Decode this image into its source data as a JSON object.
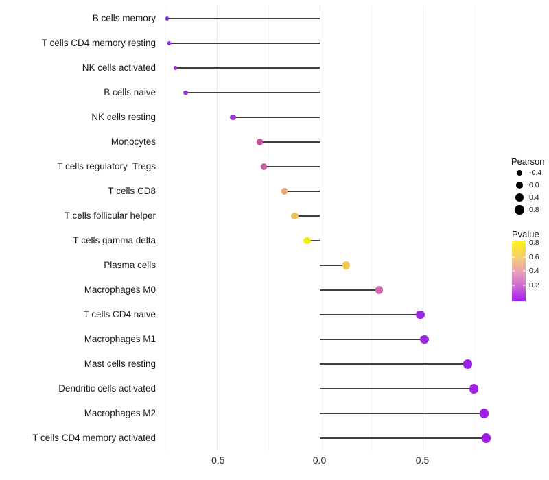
{
  "chart_data": {
    "type": "lollipop",
    "orientation": "horizontal",
    "title": "",
    "xlabel": "",
    "ylabel": "",
    "categories": [
      "B cells memory",
      "T cells CD4 memory resting",
      "NK cells activated",
      "B cells naive",
      "NK cells resting",
      "Monocytes",
      "T cells regulatory  Tregs",
      "T cells CD8",
      "T cells follicular helper",
      "T cells gamma delta",
      "Plasma cells",
      "Macrophages M0",
      "T cells CD4 naive",
      "Macrophages M1",
      "Mast cells resting",
      "Dendritic cells activated",
      "Macrophages M2",
      "T cells CD4 memory activated"
    ],
    "series": [
      {
        "name": "Pearson",
        "values": [
          -0.74,
          -0.73,
          -0.7,
          -0.65,
          -0.42,
          -0.29,
          -0.27,
          -0.17,
          -0.12,
          -0.06,
          0.13,
          0.29,
          0.49,
          0.51,
          0.72,
          0.75,
          0.8,
          0.81
        ]
      }
    ],
    "point_colors": [
      "#8d2be0",
      "#8d2be0",
      "#9230da",
      "#9530d6",
      "#a238d2",
      "#c4559e",
      "#ca60a2",
      "#eaa46e",
      "#efc35a",
      "#f2ee0a",
      "#f0c64f",
      "#d466b0",
      "#9929dc",
      "#9929dc",
      "#9c23df",
      "#9c23df",
      "#a01ee4",
      "#a01ee4"
    ],
    "x_axis": {
      "range": [
        -0.775,
        0.855
      ],
      "ticks": [
        {
          "label": "-0.5",
          "value": -0.5
        },
        {
          "label": "0.0",
          "value": 0.0
        },
        {
          "label": "0.5",
          "value": 0.5
        }
      ],
      "grid_major": [
        -0.5,
        0.0,
        0.5
      ],
      "grid_minor": [
        -0.75,
        -0.25,
        0.25,
        0.75
      ]
    },
    "baseline_value": 0.0,
    "legends": {
      "size": {
        "title": "Pearson",
        "entries": [
          {
            "label": "-0.4",
            "value": -0.4
          },
          {
            "label": "0.0",
            "value": 0.0
          },
          {
            "label": "0.4",
            "value": 0.4
          },
          {
            "label": "0.8",
            "value": 0.8
          }
        ]
      },
      "color": {
        "title": "Pvalue",
        "tick_labels": [
          "0.8",
          "0.6",
          "0.4",
          "0.2"
        ],
        "gradient_stops": [
          {
            "color": "#fbf50a",
            "pos": 0
          },
          {
            "color": "#f3c97c",
            "pos": 30
          },
          {
            "color": "#e79bb9",
            "pos": 53
          },
          {
            "color": "#cb66d4",
            "pos": 76
          },
          {
            "color": "#a81bf2",
            "pos": 100
          }
        ]
      }
    },
    "style_colors": {
      "stick": "#3e3e3e",
      "grid_major": "#e7e7e7",
      "grid_minor": "#f4f4f4",
      "legend_dot": "#000000",
      "background": "#ffffff"
    }
  }
}
